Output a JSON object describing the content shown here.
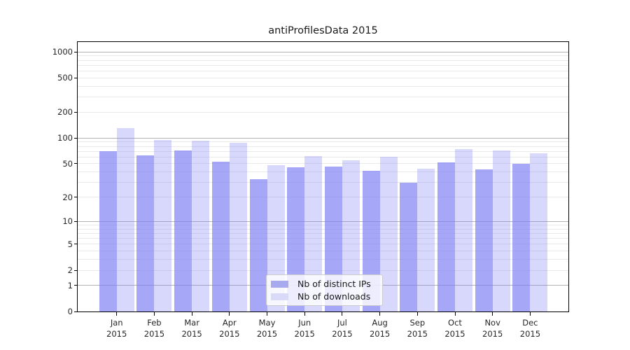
{
  "chart_data": {
    "type": "bar",
    "title": "antiProfilesData 2015",
    "categories": [
      "Jan 2015",
      "Feb 2015",
      "Mar 2015",
      "Apr 2015",
      "May 2015",
      "Jun 2015",
      "Jul 2015",
      "Aug 2015",
      "Sep 2015",
      "Oct 2015",
      "Nov 2015",
      "Dec 2015"
    ],
    "series": [
      {
        "name": "Nb of distinct IPs",
        "values": [
          70,
          63,
          72,
          53,
          33,
          45,
          46,
          41,
          30,
          52,
          43,
          50
        ]
      },
      {
        "name": "Nb of downloads",
        "values": [
          130,
          95,
          93,
          88,
          48,
          61,
          55,
          60,
          44,
          74,
          71,
          66
        ]
      }
    ],
    "xlabel": "",
    "ylabel": "",
    "yscale": "log1p",
    "ylim": [
      0,
      1300
    ],
    "yticks": [
      0,
      1,
      2,
      5,
      10,
      20,
      50,
      100,
      200,
      500,
      1000
    ],
    "grid": "both",
    "legend_position": "lower-center-inside",
    "colors": {
      "series_fill": [
        "rgba(125,125,245,0.68)",
        "rgba(125,125,245,0.30)"
      ],
      "legend_swatch": [
        "#a9a9ef",
        "#d9d9f8"
      ],
      "grid_major": "#b2b2b2",
      "grid_minor": "#e9e9e9",
      "axis": "#000000",
      "text": "#262626"
    }
  }
}
